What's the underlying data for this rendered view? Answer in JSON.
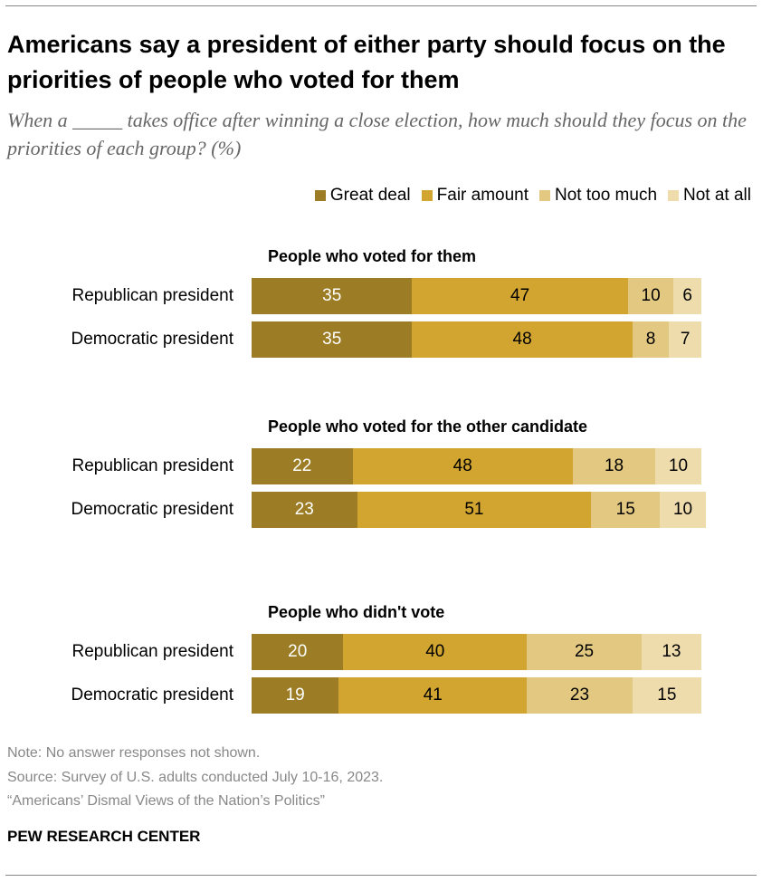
{
  "title": "Americans say a president of either party should focus on the priorities of people who voted for them",
  "subtitle": "When a _____ takes office after winning a close election, how much should they focus on the priorities of each group? (%)",
  "note": "Note: No answer responses not shown.",
  "source": "Source: Survey of U.S. adults conducted July 10-16, 2023.",
  "report": "“Americans’ Dismal Views of the Nation’s Politics”",
  "brand": "PEW RESEARCH CENTER",
  "chart_data": {
    "type": "bar",
    "orientation": "horizontal",
    "stacked": true,
    "legend_position": "top-right",
    "series": [
      {
        "name": "Great deal",
        "color": "#9c7c24"
      },
      {
        "name": "Fair amount",
        "color": "#d2a530"
      },
      {
        "name": "Not too much",
        "color": "#e2c880"
      },
      {
        "name": "Not at all",
        "color": "#eedcac"
      }
    ],
    "groups": [
      {
        "title": "People who voted for them",
        "rows": [
          {
            "label": "Republican president",
            "values": [
              35,
              47,
              10,
              6
            ]
          },
          {
            "label": "Democratic president",
            "values": [
              35,
              48,
              8,
              7
            ]
          }
        ]
      },
      {
        "title": "People who voted for the other candidate",
        "rows": [
          {
            "label": "Republican president",
            "values": [
              22,
              48,
              18,
              10
            ]
          },
          {
            "label": "Democratic president",
            "values": [
              23,
              51,
              15,
              10
            ]
          }
        ]
      },
      {
        "title": "People who didn't vote",
        "rows": [
          {
            "label": "Republican president",
            "values": [
              20,
              40,
              25,
              13
            ]
          },
          {
            "label": "Democratic president",
            "values": [
              19,
              41,
              23,
              15
            ]
          }
        ]
      }
    ]
  }
}
